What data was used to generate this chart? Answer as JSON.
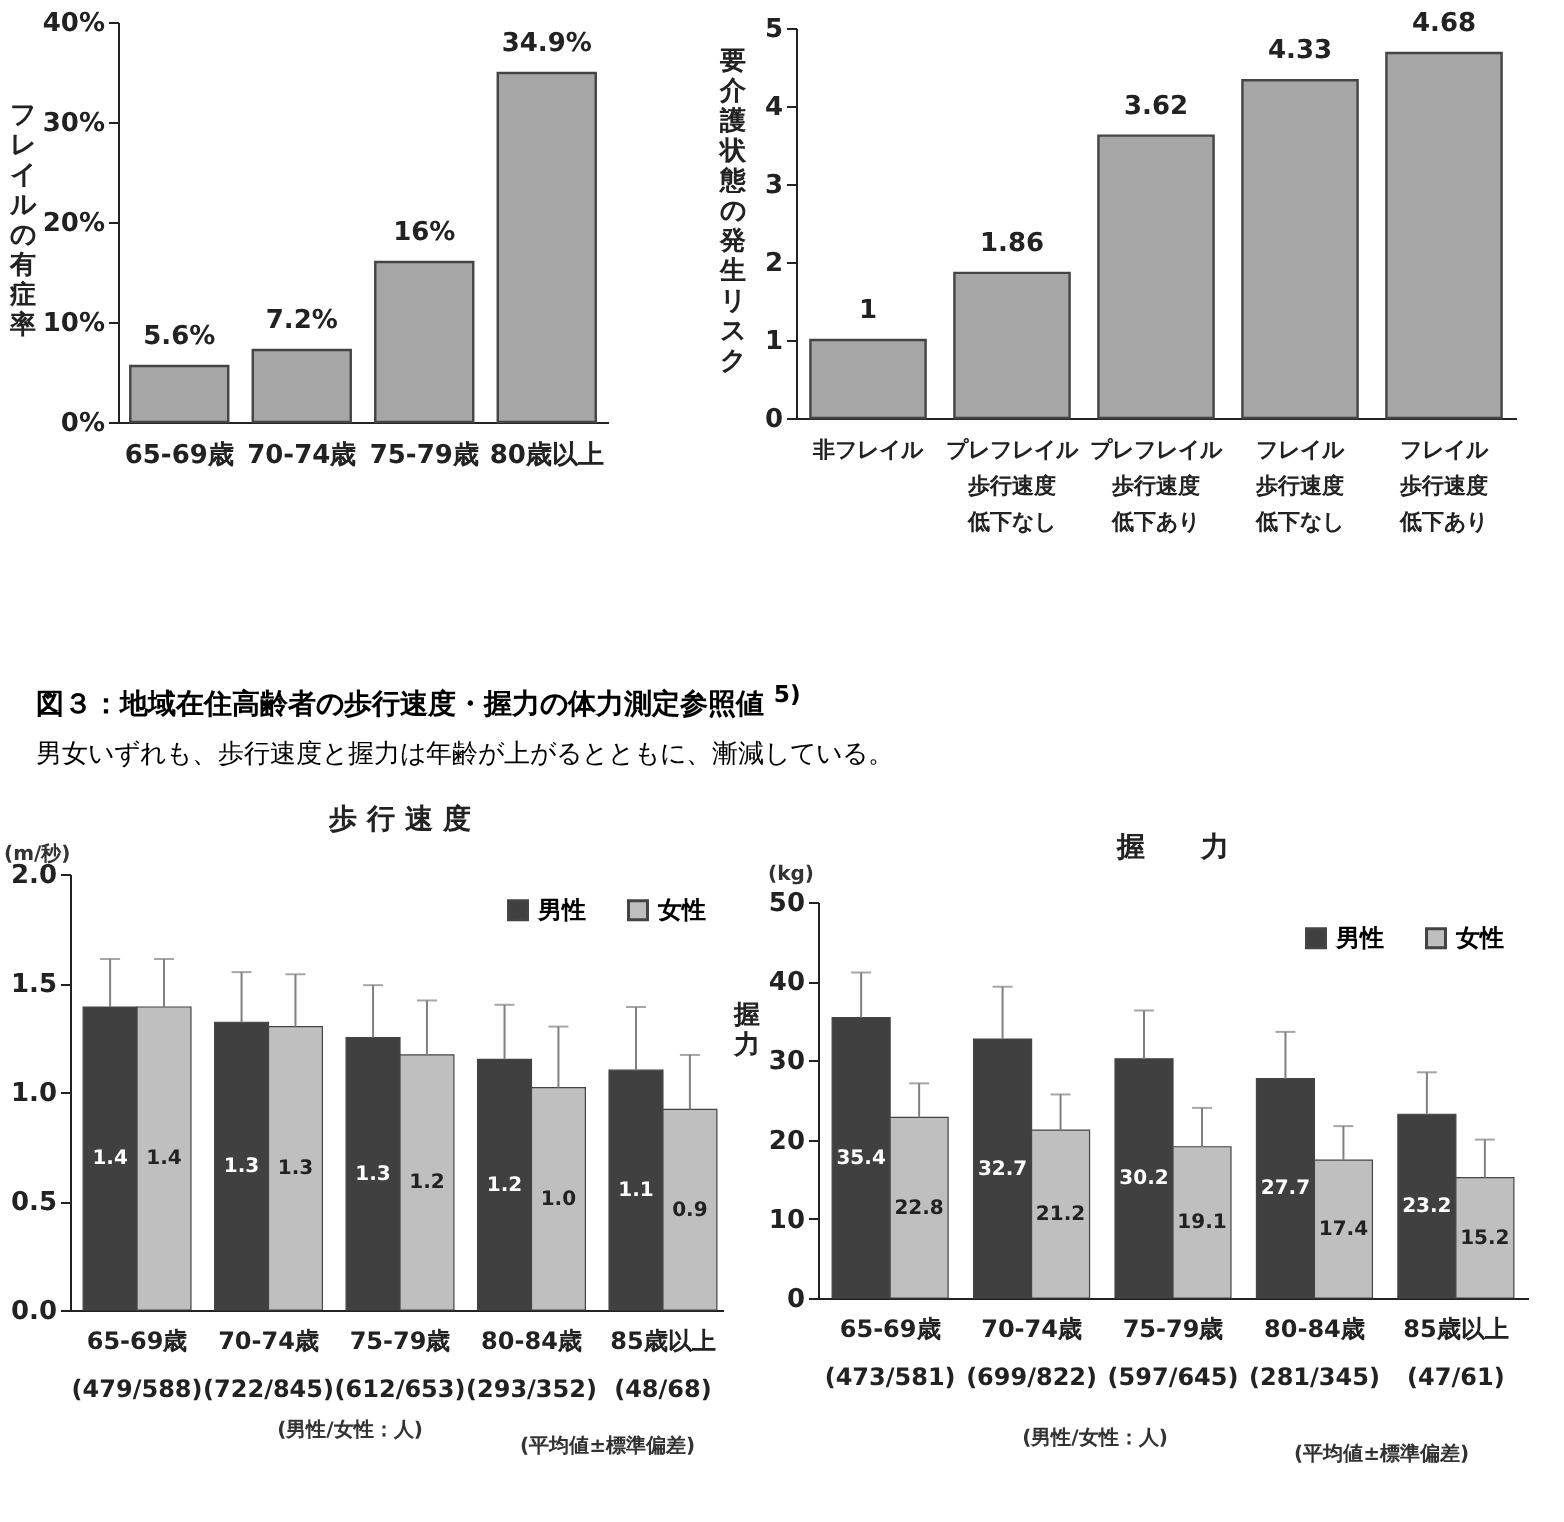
{
  "chart_data": [
    {
      "type": "bar",
      "ylabel": "フレイルの有症率",
      "categories": [
        "65-69歳",
        "70-74歳",
        "75-79歳",
        "80歳以上"
      ],
      "values": [
        5.6,
        7.2,
        16,
        34.9
      ],
      "color": "#a6a6a6",
      "value_labels": [
        "5.6%",
        "7.2%",
        "16%",
        "34.9%"
      ],
      "ylim": [
        0,
        40
      ],
      "yticks": [
        {
          "value": 0,
          "label": "0%"
        },
        {
          "value": 10,
          "label": "10%"
        },
        {
          "value": 20,
          "label": "20%"
        },
        {
          "value": 30,
          "label": "30%"
        },
        {
          "value": 40,
          "label": "40%"
        }
      ],
      "grid": false,
      "legend": false
    },
    {
      "type": "bar",
      "ylabel": "要介護状態の発生リスク",
      "categories": [
        "非フレイル",
        "プレフレイル歩行速度低下なし",
        "プレフレイル歩行速度低下あり",
        "フレイル歩行速度低下なし",
        "フレイル歩行速度低下あり"
      ],
      "values": [
        1,
        1.86,
        3.62,
        4.33,
        4.68
      ],
      "color": "#a6a6a6",
      "data_labels": true,
      "ylim": [
        0,
        5
      ],
      "yticks": [
        0,
        1,
        2,
        3,
        4,
        5
      ],
      "grid": false,
      "legend": false
    },
    {
      "type": "other",
      "title": "図３：地域在住高齢者の歩行速度・握力の体力測定参照値 $^{5)}$",
      "subtitle": "男女いずれも、歩行速度と握力は年齢が上がるとともに、漸減している。"
    },
    {
      "type": "bar",
      "title": "歩 行 速 度",
      "categories": [
        "65-69歳\n(479/588)",
        "70-74歳\n(722/845)",
        "75-79歳\n(612/653)",
        "80-84歳\n(293/352)",
        "85歳以上\n(48/68)"
      ],
      "series": [
        {
          "name": "男性",
          "color": "#404040",
          "values": [
            1.39,
            1.32,
            1.25,
            1.15,
            1.1
          ],
          "value_labels": [
            "1.4",
            "1.3",
            "1.3",
            "1.2",
            "1.1"
          ],
          "errors": [
            [
              1.39,
              1.61
            ],
            [
              1.32,
              1.55
            ],
            [
              1.25,
              1.49
            ],
            [
              1.15,
              1.4
            ],
            [
              1.1,
              1.39
            ]
          ]
        },
        {
          "name": "女性",
          "color": "#bfbfbf",
          "values": [
            1.39,
            1.3,
            1.17,
            1.02,
            0.92
          ],
          "value_labels": [
            "1.4",
            "1.3",
            "1.2",
            "1.0",
            "0.9"
          ],
          "errors": [
            [
              1.39,
              1.61
            ],
            [
              1.3,
              1.54
            ],
            [
              1.17,
              1.42
            ],
            [
              1.02,
              1.3
            ],
            [
              0.92,
              1.17
            ]
          ]
        }
      ],
      "ylim": [
        0,
        2
      ],
      "yticks": [
        {
          "value": 0,
          "label": "0.0"
        },
        0.5,
        {
          "value": 1,
          "label": "1.0"
        },
        1.5,
        {
          "value": 2,
          "label": "2.0"
        }
      ],
      "grid": false,
      "legend": "top right",
      "annotations": [
        "(m/秒)",
        "(男性/女性：人)",
        "(平均値±標準偏差)"
      ]
    },
    {
      "type": "bar",
      "title": "握　　力",
      "ylabel": "握力",
      "categories": [
        "65-69歳\n(473/581)",
        "70-74歳\n(699/822)",
        "75-79歳\n(597/645)",
        "80-84歳\n(281/345)",
        "85歳以上\n(47/61)"
      ],
      "series": [
        {
          "name": "男性",
          "color": "#404040",
          "values": [
            35.4,
            32.7,
            30.2,
            27.7,
            23.2
          ],
          "errors": [
            [
              35.4,
              41.1
            ],
            [
              32.7,
              39.3
            ],
            [
              30.2,
              36.3
            ],
            [
              27.7,
              33.6
            ],
            [
              23.2,
              28.5
            ]
          ]
        },
        {
          "name": "女性",
          "color": "#bfbfbf",
          "values": [
            22.8,
            21.2,
            19.1,
            17.4,
            15.2
          ],
          "errors": [
            [
              22.8,
              27.1
            ],
            [
              21.2,
              25.7
            ],
            [
              19.1,
              24.0
            ],
            [
              17.4,
              21.7
            ],
            [
              15.2,
              20.0
            ]
          ]
        }
      ],
      "data_labels": true,
      "ylim": [
        0,
        50
      ],
      "yticks": [
        0,
        10,
        20,
        30,
        40,
        50
      ],
      "grid": false,
      "legend": "top right",
      "annotations": [
        "(kg)",
        "(男性/女性：人)",
        "(平均値±標準偏差)"
      ]
    }
  ]
}
